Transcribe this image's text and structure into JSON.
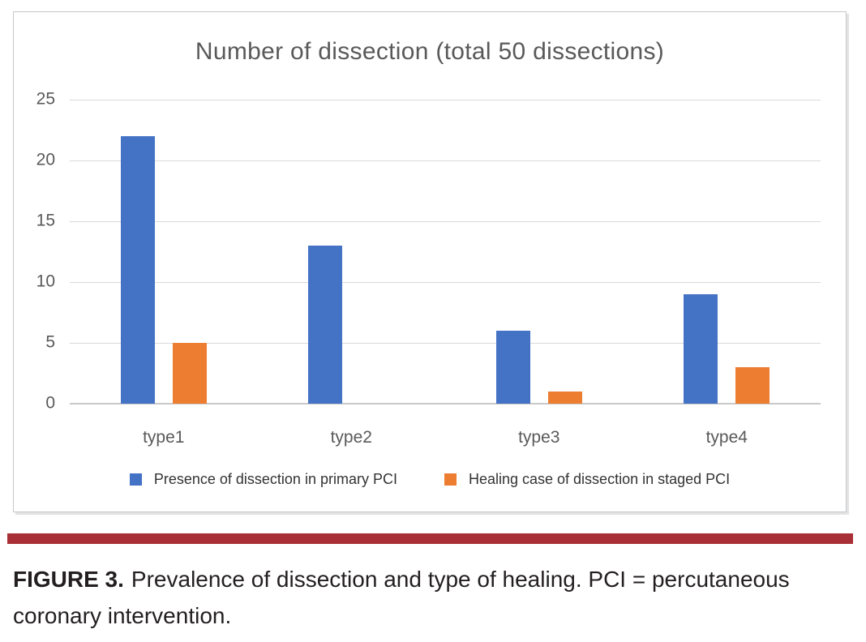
{
  "chart_data": {
    "type": "bar",
    "title": "Number of dissection (total 50 dissections)",
    "categories": [
      "type1",
      "type2",
      "type3",
      "type4"
    ],
    "series": [
      {
        "name": "Presence of dissection in primary PCI",
        "color": "#4472C4",
        "values": [
          22,
          13,
          6,
          9
        ]
      },
      {
        "name": "Healing case of dissection in staged PCI",
        "color": "#ED7D31",
        "values": [
          5,
          0,
          1,
          3
        ]
      }
    ],
    "ylim": [
      0,
      25
    ],
    "yticks": [
      0,
      5,
      10,
      15,
      20,
      25
    ],
    "grid": true,
    "legend_position": "bottom"
  },
  "caption": {
    "label": "FIGURE 3.",
    "text": "Prevalence of dissection and type of healing. PCI = percutaneous coronary intervention."
  },
  "colors": {
    "series_primary_blue": "#4472C4",
    "series_staged_orange": "#ED7D31",
    "divider_red": "#A92F36",
    "gridline_gray": "#D9D9D9",
    "muted_text_gray": "#595959"
  }
}
